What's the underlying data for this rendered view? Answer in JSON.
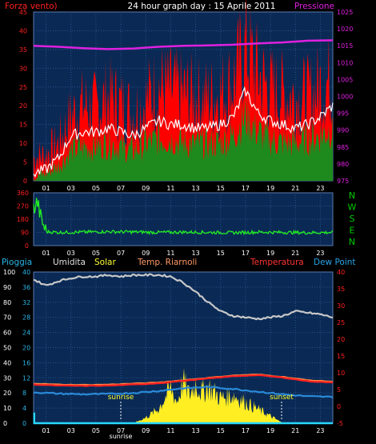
{
  "header": {
    "left_label": "Forza vento)",
    "title": "24 hour graph day : 15 Aprile 2011",
    "right_label": "Pressione"
  },
  "compass": {
    "letters": [
      "N",
      "W",
      "S",
      "E",
      "N"
    ]
  },
  "legend": [
    {
      "text": "Pioggia",
      "color": "#29b6e8"
    },
    {
      "text": "Umidita",
      "color": "#e0e0e0"
    },
    {
      "text": "Solar",
      "color": "#ffff33"
    },
    {
      "text": "Temp. Riarnoli",
      "color": "#ff9966"
    },
    {
      "text": "Temperatura",
      "color": "#ff3333"
    },
    {
      "text": "Dew Point",
      "color": "#29a3e8"
    }
  ],
  "markers": {
    "sunrise": "sunrise",
    "sunset": "sunset"
  },
  "colors": {
    "wind_axis": "#ff2020",
    "pressure_axis": "#e020e0",
    "direction_axis": "#ff2020",
    "compass": "#00cc00",
    "rain_axis": "#29b6e8",
    "temp_axis": "#ff2020",
    "plot_bg": "#0a2a55",
    "grid": "#2a4f88",
    "gust": "#ff0000",
    "avg_wind": "#1e8a1e",
    "wind_line": "#ffffff",
    "pressure": "#e020e0",
    "direction": "#22ee22",
    "humidity": "#c8c8c8",
    "solar": "#ffee22",
    "temp_riarnoli": "#ff8844",
    "temperatura": "#ff2020",
    "dew_point": "#2a8ad8",
    "rain": "#29d8ff"
  },
  "chart_data": [
    {
      "type": "line",
      "title": "24 hour graph day : 15 Aprile 2011",
      "x_ticks": [
        "01",
        "03",
        "05",
        "07",
        "09",
        "11",
        "13",
        "15",
        "17",
        "19",
        "21",
        "23"
      ],
      "y_left": {
        "label": "Forza vento)",
        "range": [
          0,
          45
        ],
        "ticks": [
          0,
          5,
          10,
          15,
          20,
          25,
          30,
          35,
          40,
          45
        ]
      },
      "y_right": {
        "label": "Pressione",
        "range": [
          975,
          1025
        ],
        "ticks": [
          975,
          980,
          985,
          990,
          995,
          1000,
          1005,
          1010,
          1015,
          1020,
          1025
        ]
      },
      "series": [
        {
          "name": "gust",
          "hours": [
            0,
            1,
            2,
            3,
            4,
            5,
            6,
            7,
            8,
            9,
            10,
            11,
            12,
            13,
            14,
            15,
            16,
            17,
            18,
            19,
            20,
            21,
            22,
            23,
            24
          ],
          "values": [
            6,
            7,
            10,
            17,
            20,
            19,
            22,
            20,
            18,
            21,
            25,
            24,
            23,
            22,
            22,
            23,
            26,
            35,
            28,
            24,
            23,
            22,
            22,
            25,
            27
          ]
        },
        {
          "name": "wind",
          "hours": [
            0,
            1,
            2,
            3,
            4,
            5,
            6,
            7,
            8,
            9,
            10,
            11,
            12,
            13,
            14,
            15,
            16,
            17,
            18,
            19,
            20,
            21,
            22,
            23,
            24
          ],
          "values": [
            2,
            3,
            6,
            12,
            13,
            13,
            14,
            13,
            12,
            14,
            16,
            15,
            15,
            14,
            14,
            15,
            17,
            24,
            18,
            16,
            15,
            14,
            15,
            17,
            20
          ]
        },
        {
          "name": "avg",
          "hours": [
            0,
            1,
            2,
            3,
            4,
            5,
            6,
            7,
            8,
            9,
            10,
            11,
            12,
            13,
            14,
            15,
            16,
            17,
            18,
            19,
            20,
            21,
            22,
            23,
            24
          ],
          "values": [
            1,
            2,
            4,
            8,
            9,
            9,
            10,
            9,
            8,
            10,
            11,
            11,
            10,
            10,
            10,
            10,
            12,
            17,
            13,
            11,
            10,
            10,
            11,
            12,
            14
          ]
        },
        {
          "name": "Pressione",
          "hours": [
            0,
            2,
            4,
            6,
            8,
            10,
            12,
            14,
            16,
            18,
            20,
            22,
            24
          ],
          "values": [
            1015,
            1014.7,
            1014.3,
            1014,
            1014.2,
            1014.7,
            1015,
            1015.1,
            1015.3,
            1015.7,
            1016,
            1016.5,
            1016.6
          ]
        }
      ]
    },
    {
      "type": "scatter",
      "x_ticks": [
        "01",
        "03",
        "05",
        "07",
        "09",
        "11",
        "13",
        "15",
        "17",
        "19",
        "21",
        "23"
      ],
      "y": {
        "range": [
          0,
          360
        ],
        "ticks": [
          0,
          90,
          180,
          270,
          360
        ]
      },
      "series": [
        {
          "name": "direction",
          "hours": [
            0,
            0.3,
            0.6,
            1,
            2,
            4,
            6,
            8,
            10,
            12,
            14,
            16,
            18,
            20,
            22,
            24
          ],
          "values": [
            250,
            300,
            180,
            95,
            90,
            92,
            95,
            93,
            90,
            92,
            90,
            88,
            92,
            90,
            88,
            90
          ]
        }
      ]
    },
    {
      "type": "line",
      "x_ticks": [
        "01",
        "03",
        "05",
        "07",
        "09",
        "11",
        "13",
        "15",
        "17",
        "19",
        "21",
        "23"
      ],
      "y_left": {
        "label": "Pioggia",
        "range": [
          0,
          100
        ],
        "ticks": [
          0,
          10,
          20,
          30,
          40,
          50,
          60,
          70,
          80,
          90,
          100
        ]
      },
      "y_right": {
        "label": "Temperatura",
        "range": [
          -5,
          40
        ],
        "ticks": [
          -5,
          0,
          5,
          10,
          15,
          20,
          25,
          30,
          35,
          40
        ]
      },
      "series": [
        {
          "name": "Umidita",
          "hours": [
            0,
            1,
            2,
            3,
            4,
            5,
            6,
            7,
            8,
            9,
            10,
            11,
            12,
            13,
            14,
            15,
            16,
            17,
            18,
            19,
            20,
            21,
            22,
            23,
            24
          ],
          "values": [
            95,
            91,
            94,
            96,
            97,
            97,
            98,
            97,
            98,
            98,
            98,
            97,
            93,
            87,
            80,
            74,
            71,
            70,
            69,
            70,
            71,
            74,
            73,
            72,
            70
          ]
        },
        {
          "name": "Temp. Riarnoli",
          "hours": [
            0,
            2,
            4,
            6,
            8,
            10,
            12,
            14,
            16,
            18,
            20,
            22,
            24
          ],
          "values": [
            6.8,
            6.5,
            6.4,
            6.5,
            6.8,
            7.1,
            7.8,
            8.5,
            9.2,
            9.5,
            8.8,
            7.8,
            7.4
          ]
        },
        {
          "name": "Temperatura",
          "hours": [
            0,
            2,
            4,
            6,
            8,
            10,
            12,
            14,
            16,
            18,
            20,
            22,
            24
          ],
          "values": [
            6.5,
            6.2,
            6.1,
            6.2,
            6.5,
            6.9,
            7.6,
            8.3,
            9,
            9.3,
            8.6,
            7.5,
            7.1
          ]
        },
        {
          "name": "Dew Point",
          "hours": [
            0,
            2,
            4,
            6,
            8,
            10,
            12,
            14,
            16,
            18,
            20,
            22,
            24
          ],
          "values": [
            4.2,
            3.8,
            3.6,
            3.7,
            4,
            4.6,
            5.4,
            5.8,
            5.2,
            4.4,
            3.6,
            3,
            2.8
          ]
        },
        {
          "name": "Solar",
          "hours": [
            0,
            6,
            8,
            9,
            10,
            11,
            11.5,
            12,
            12.5,
            13,
            13.5,
            14,
            15,
            16,
            17,
            18,
            19,
            20,
            24
          ],
          "values": [
            0,
            0,
            0,
            4,
            10,
            25,
            15,
            30,
            20,
            28,
            22,
            26,
            18,
            20,
            15,
            10,
            5,
            0,
            0
          ]
        },
        {
          "name": "Pioggia",
          "hours": [
            0,
            0.5,
            1,
            24
          ],
          "values": [
            7,
            6,
            0,
            0
          ]
        }
      ],
      "annotations": [
        "sunrise",
        "sunset"
      ]
    }
  ]
}
